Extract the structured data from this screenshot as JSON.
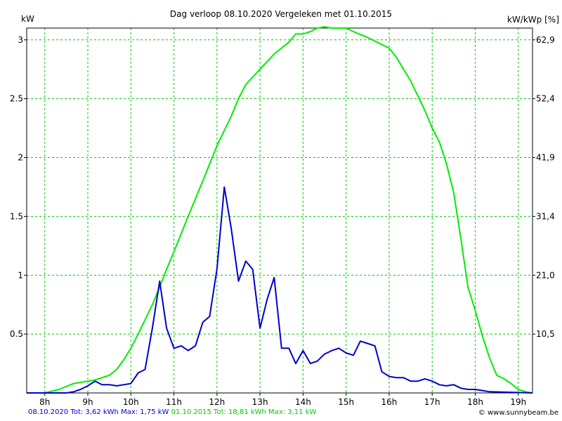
{
  "chart_data": {
    "type": "line",
    "title": "Dag  verloop 08.10.2020   Vergeleken met 01.10.2015",
    "ylabel_left": "kW",
    "ylabel_right": "kW/kWp [%]",
    "x_ticks": [
      "8h",
      "9h",
      "10h",
      "11h",
      "12h",
      "13h",
      "14h",
      "15h",
      "16h",
      "17h",
      "18h",
      "19h"
    ],
    "y_ticks_left": [
      "0.5",
      "1",
      "1.5",
      "2",
      "2.5",
      "3"
    ],
    "y_ticks_right": [
      "10,5",
      "21,0",
      "31,4",
      "41,9",
      "52,4",
      "62,9"
    ],
    "xlim": [
      7.58,
      19.33
    ],
    "ylim": [
      0,
      3.1
    ],
    "grid": true,
    "grid_color": "#00cc00",
    "series": [
      {
        "name": "08.10.2020",
        "color": "#0000cc",
        "x": [
          7.58,
          8.5,
          8.67,
          8.83,
          9.0,
          9.17,
          9.33,
          9.5,
          9.67,
          9.83,
          10.0,
          10.17,
          10.33,
          10.5,
          10.67,
          10.83,
          11.0,
          11.17,
          11.33,
          11.5,
          11.67,
          11.83,
          12.0,
          12.17,
          12.33,
          12.5,
          12.67,
          12.83,
          13.0,
          13.17,
          13.33,
          13.5,
          13.67,
          13.83,
          14.0,
          14.17,
          14.33,
          14.5,
          14.67,
          14.83,
          15.0,
          15.17,
          15.33,
          15.5,
          15.67,
          15.83,
          16.0,
          16.17,
          16.33,
          16.5,
          16.67,
          16.83,
          17.0,
          17.17,
          17.33,
          17.5,
          17.67,
          17.83,
          18.0,
          18.17,
          18.33,
          19.33
        ],
        "y": [
          0,
          0,
          0.01,
          0.03,
          0.06,
          0.1,
          0.07,
          0.07,
          0.06,
          0.07,
          0.08,
          0.17,
          0.2,
          0.55,
          0.95,
          0.55,
          0.38,
          0.4,
          0.36,
          0.4,
          0.6,
          0.65,
          1.05,
          1.75,
          1.4,
          0.95,
          1.12,
          1.05,
          0.55,
          0.8,
          0.98,
          0.38,
          0.38,
          0.25,
          0.36,
          0.25,
          0.27,
          0.33,
          0.36,
          0.38,
          0.34,
          0.32,
          0.44,
          0.42,
          0.4,
          0.18,
          0.14,
          0.13,
          0.13,
          0.1,
          0.1,
          0.12,
          0.1,
          0.07,
          0.06,
          0.07,
          0.04,
          0.03,
          0.03,
          0.02,
          0.01,
          0
        ]
      },
      {
        "name": "01.10.2015",
        "color": "#00ee00",
        "x": [
          7.58,
          8.0,
          8.33,
          8.67,
          9.0,
          9.17,
          9.5,
          9.67,
          9.83,
          10.0,
          10.17,
          10.5,
          10.67,
          10.83,
          11.0,
          11.33,
          11.67,
          12.0,
          12.33,
          12.5,
          12.67,
          13.0,
          13.33,
          13.67,
          13.83,
          14.0,
          14.17,
          14.33,
          14.5,
          14.67,
          15.0,
          15.17,
          15.5,
          15.83,
          16.0,
          16.17,
          16.5,
          16.83,
          17.0,
          17.17,
          17.33,
          17.5,
          17.67,
          17.83,
          18.0,
          18.17,
          18.33,
          18.5,
          18.67,
          18.83,
          19.0,
          19.17,
          19.33
        ],
        "y": [
          0,
          0,
          0.03,
          0.08,
          0.1,
          0.11,
          0.15,
          0.2,
          0.28,
          0.38,
          0.5,
          0.75,
          0.9,
          1.05,
          1.2,
          1.5,
          1.8,
          2.1,
          2.35,
          2.5,
          2.62,
          2.75,
          2.88,
          2.98,
          3.05,
          3.05,
          3.07,
          3.1,
          3.11,
          3.1,
          3.1,
          3.07,
          3.02,
          2.96,
          2.93,
          2.85,
          2.65,
          2.4,
          2.25,
          2.13,
          1.95,
          1.7,
          1.3,
          0.9,
          0.7,
          0.48,
          0.3,
          0.15,
          0.12,
          0.08,
          0.03,
          0.01,
          0
        ]
      }
    ]
  },
  "footer": {
    "series1_text": "08.10.2020 Tot: 3,62 kWh Max: 1,75 kW",
    "series2_text": "01.10.2015 Tot: 18,81 kWh Max: 3,11 kW",
    "copyright": "© www.sunnybeam.be"
  }
}
